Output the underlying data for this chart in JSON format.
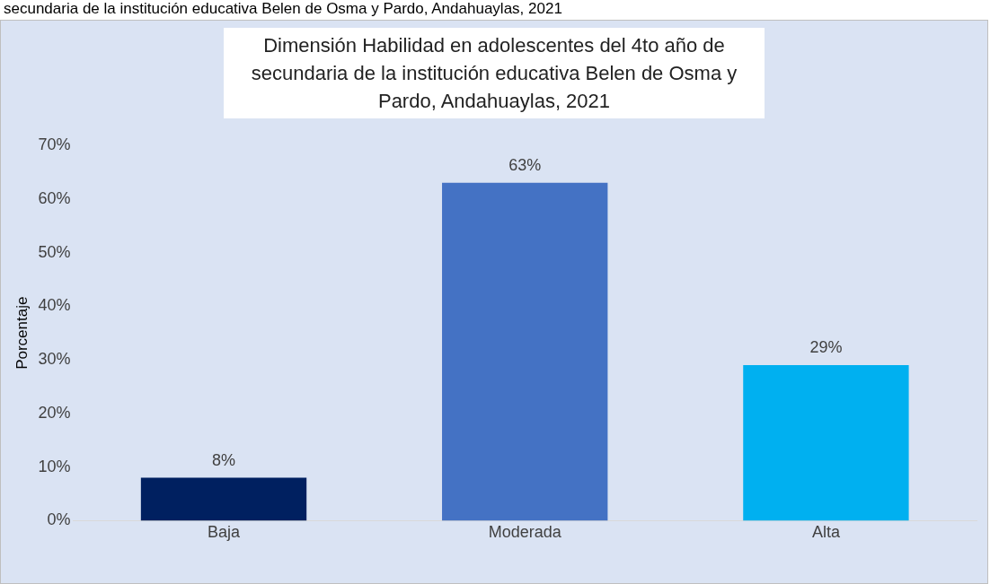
{
  "chart_data": {
    "type": "bar",
    "title": "Dimensión Habilidad en adolescentes del 4to año de secundaria de la institución educativa Belen de Osma y Pardo, Andahuaylas, 2021",
    "annotations": [
      "secundaria de la institución educativa Belen de Osma y Pardo, Andahuaylas, 2021"
    ],
    "ylabel": "Porcentaje",
    "categories": [
      "Baja",
      "Moderada",
      "Alta"
    ],
    "values": [
      8,
      63,
      29
    ],
    "colors": [
      "#002060",
      "#4472c4",
      "#00b0f0"
    ],
    "value_labels": [
      "8%",
      "63%",
      "29%"
    ],
    "ylim": [
      0,
      70
    ],
    "yticks": [
      {
        "value": 0,
        "label": "0%"
      },
      {
        "value": 10,
        "label": "10%"
      },
      {
        "value": 20,
        "label": "20%"
      },
      {
        "value": 30,
        "label": "30%"
      },
      {
        "value": 40,
        "label": "40%"
      },
      {
        "value": 50,
        "label": "50%"
      },
      {
        "value": 60,
        "label": "60%"
      },
      {
        "value": 70,
        "label": "70%"
      }
    ],
    "grid": false,
    "legend": false
  }
}
